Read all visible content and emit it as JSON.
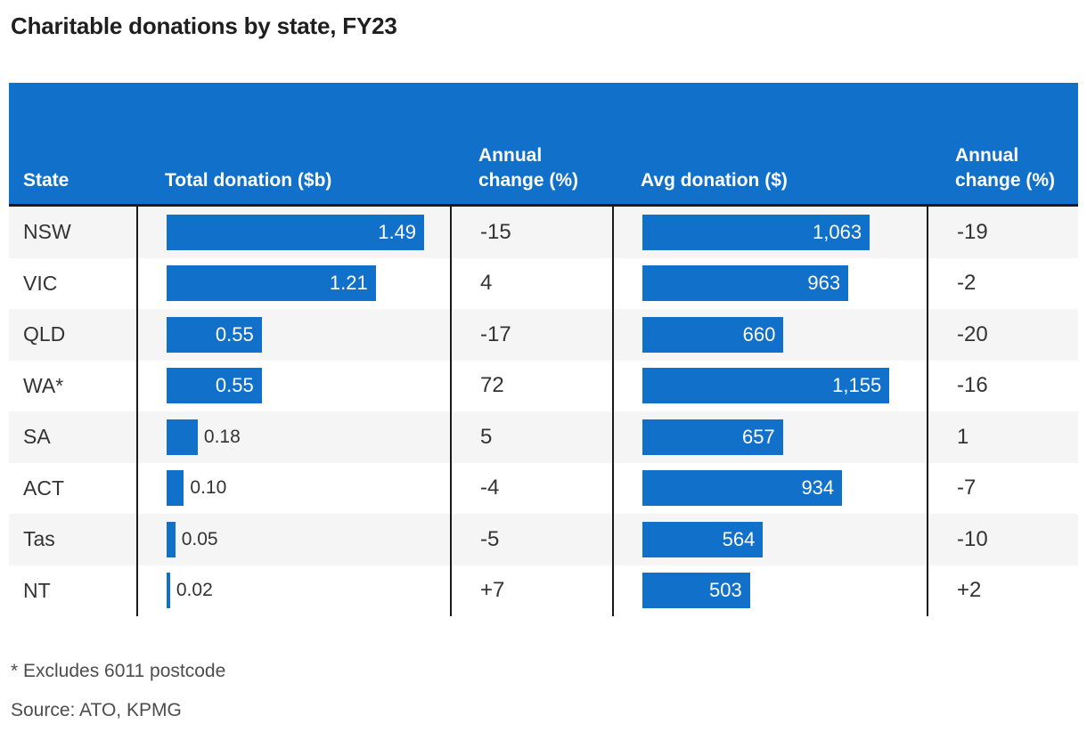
{
  "title": "Charitable donations by state, FY23",
  "footnote": "* Excludes 6011 postcode",
  "source": "Source: ATO, KPMG",
  "colors": {
    "accent_blue": "#1170c9",
    "header_text": "#ffffff",
    "body_text": "#333333",
    "row_stripe": "#f5f5f6",
    "divider": "#1a1a1a"
  },
  "chart_data": {
    "type": "table",
    "title": "Charitable donations by state, FY23",
    "columns": [
      "State",
      "Total donation ($b)",
      "Annual change (%)",
      "Avg donation ($)",
      "Annual change (%)"
    ],
    "bar_columns": {
      "total": {
        "header": "Total donation ($b)",
        "max": 1.49
      },
      "avg": {
        "header": "Avg donation ($)",
        "max": 1155
      }
    },
    "rows": [
      {
        "state": "NSW",
        "total": 1.49,
        "total_label": "1.49",
        "total_change": "-15",
        "avg": 1063,
        "avg_label": "1,063",
        "avg_change": "-19"
      },
      {
        "state": "VIC",
        "total": 1.21,
        "total_label": "1.21",
        "total_change": "4",
        "avg": 963,
        "avg_label": "963",
        "avg_change": "-2"
      },
      {
        "state": "QLD",
        "total": 0.55,
        "total_label": "0.55",
        "total_change": "-17",
        "avg": 660,
        "avg_label": "660",
        "avg_change": "-20"
      },
      {
        "state": "WA*",
        "total": 0.55,
        "total_label": "0.55",
        "total_change": "72",
        "avg": 1155,
        "avg_label": "1,155",
        "avg_change": "-16"
      },
      {
        "state": "SA",
        "total": 0.18,
        "total_label": "0.18",
        "total_change": "5",
        "avg": 657,
        "avg_label": "657",
        "avg_change": "1"
      },
      {
        "state": "ACT",
        "total": 0.1,
        "total_label": "0.10",
        "total_change": "-4",
        "avg": 934,
        "avg_label": "934",
        "avg_change": "-7"
      },
      {
        "state": "Tas",
        "total": 0.05,
        "total_label": "0.05",
        "total_change": "-5",
        "avg": 564,
        "avg_label": "564",
        "avg_change": "-10"
      },
      {
        "state": "NT",
        "total": 0.02,
        "total_label": "0.02",
        "total_change": "+7",
        "avg": 503,
        "avg_label": "503",
        "avg_change": "+2"
      }
    ]
  }
}
